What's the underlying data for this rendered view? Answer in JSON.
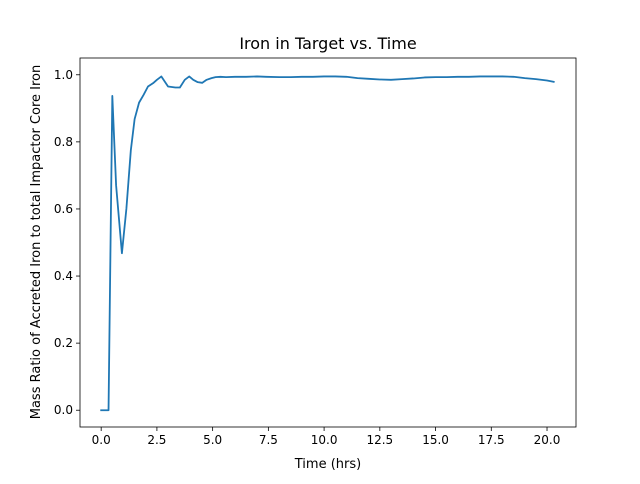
{
  "chart_data": {
    "type": "line",
    "title": "Iron in Target vs. Time",
    "xlabel": "Time (hrs)",
    "ylabel": "Mass Ratio of Accreted Iron to total Impactor Core Iron",
    "xlim": [
      -0.95,
      21.3
    ],
    "ylim": [
      -0.05,
      1.05
    ],
    "xticks": [
      0.0,
      2.5,
      5.0,
      7.5,
      10.0,
      12.5,
      15.0,
      17.5,
      20.0
    ],
    "xtick_labels": [
      "0.0",
      "2.5",
      "5.0",
      "7.5",
      "10.0",
      "12.5",
      "15.0",
      "17.5",
      "20.0"
    ],
    "yticks": [
      0.0,
      0.2,
      0.4,
      0.6,
      0.8,
      1.0
    ],
    "ytick_labels": [
      "0.0",
      "0.2",
      "0.4",
      "0.6",
      "0.8",
      "1.0"
    ],
    "grid": false,
    "line_color": "#1f77b4",
    "series": [
      {
        "x": [
          0.0,
          0.33,
          0.5,
          0.67,
          0.93,
          1.13,
          1.33,
          1.5,
          1.7,
          1.9,
          2.1,
          2.33,
          2.5,
          2.7,
          3.0,
          3.33,
          3.53,
          3.75,
          3.95,
          4.13,
          4.33,
          4.53,
          4.73,
          4.95,
          5.13,
          5.35,
          5.6,
          6.0,
          6.5,
          7.0,
          7.4,
          8.0,
          8.5,
          9.0,
          9.5,
          10.0,
          10.5,
          11.0,
          11.5,
          12.0,
          12.5,
          13.0,
          13.5,
          14.0,
          14.5,
          15.0,
          15.5,
          16.0,
          16.5,
          17.0,
          17.5,
          18.0,
          18.5,
          19.0,
          19.5,
          20.0,
          20.3
        ],
        "y": [
          0.0,
          0.0,
          0.937,
          0.67,
          0.468,
          0.6,
          0.775,
          0.868,
          0.917,
          0.94,
          0.965,
          0.975,
          0.985,
          0.995,
          0.965,
          0.962,
          0.962,
          0.985,
          0.995,
          0.985,
          0.978,
          0.976,
          0.985,
          0.99,
          0.993,
          0.994,
          0.993,
          0.994,
          0.994,
          0.995,
          0.994,
          0.993,
          0.993,
          0.994,
          0.994,
          0.995,
          0.995,
          0.994,
          0.99,
          0.988,
          0.986,
          0.985,
          0.987,
          0.989,
          0.992,
          0.993,
          0.993,
          0.994,
          0.994,
          0.995,
          0.995,
          0.995,
          0.994,
          0.99,
          0.987,
          0.983,
          0.979
        ]
      }
    ]
  }
}
